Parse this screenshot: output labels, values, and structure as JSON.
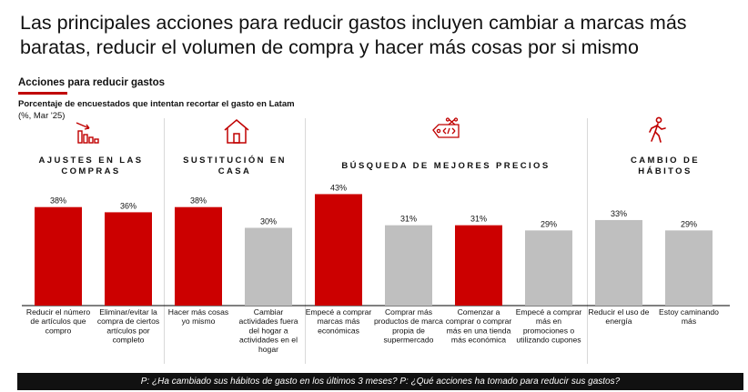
{
  "headline": "Las principales acciones para reducir gastos incluyen cambiar a marcas más baratas, reducir el volumen de compra y hacer más cosas por si mismo",
  "section_title": "Acciones para reducir gastos",
  "subtitle": "Porcentaje de encuestados que intentan recortar el gasto en Latam",
  "unit_label": "(%, Mar '25)",
  "footer_text": "P: ¿Ha cambiado sus hábitos de gasto en los últimos 3 meses? P: ¿Qué acciones ha tomado para reducir sus gastos?",
  "groups": [
    {
      "title_lines": [
        "AJUSTES EN LAS",
        "COMPRAS"
      ],
      "icon": "declining-bars-icon"
    },
    {
      "title_lines": [
        "SUSTITUCIÓN EN",
        "CASA"
      ],
      "icon": "house-icon"
    },
    {
      "title_lines": [
        "BÚSQUEDA DE MEJORES PRECIOS"
      ],
      "icon": "price-tag-scissors-icon"
    },
    {
      "title_lines": [
        "CAMBIO DE",
        "HÁBITOS"
      ],
      "icon": "walking-person-icon"
    }
  ],
  "colors": {
    "highlight": "#cc0000",
    "muted": "#bfbfbf",
    "accent": "#c00000"
  },
  "chart_data": {
    "type": "bar",
    "categories": [
      [
        "Reducir el número",
        "de artículos que",
        "compro"
      ],
      [
        "Eliminar/evitar la",
        "compra de ciertos",
        "artículos por",
        "completo"
      ],
      [
        "Hacer más cosas",
        "yo mismo"
      ],
      [
        "Cambiar",
        "actividades fuera",
        "del hogar a",
        "actividades en el",
        "hogar"
      ],
      [
        "Empecé a comprar",
        "marcas más",
        "económicas"
      ],
      [
        "Comprar más",
        "productos de marca",
        "propia de",
        "supermercado"
      ],
      [
        "Comenzar a",
        "comprar o comprar",
        "más en una tienda",
        "más económica"
      ],
      [
        "Empecé a comprar",
        "más en",
        "promociones o",
        "utilizando cupones"
      ],
      [
        "Reducir el uso de",
        "energía"
      ],
      [
        "Estoy caminando",
        "más"
      ]
    ],
    "values": [
      38,
      36,
      38,
      30,
      43,
      31,
      31,
      29,
      33,
      29
    ],
    "value_labels": [
      "38%",
      "36%",
      "38%",
      "30%",
      "43%",
      "31%",
      "31%",
      "29%",
      "33%",
      "29%"
    ],
    "highlighted": [
      true,
      true,
      true,
      false,
      true,
      false,
      true,
      false,
      false,
      false
    ],
    "group_of_bar": [
      0,
      0,
      1,
      1,
      2,
      2,
      2,
      2,
      3,
      3
    ],
    "ylim": [
      0,
      50
    ],
    "grid": false,
    "legend": "none"
  }
}
